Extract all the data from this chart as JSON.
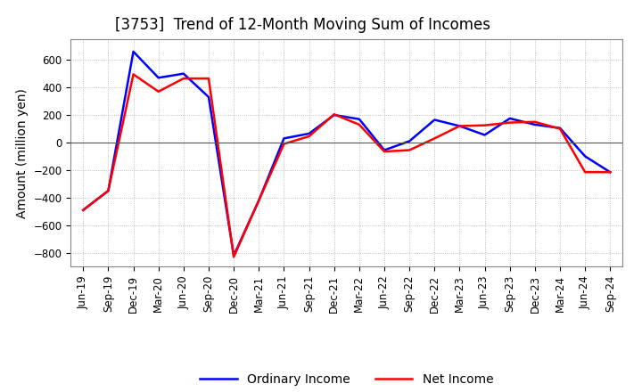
{
  "title": "[3753]  Trend of 12-Month Moving Sum of Incomes",
  "ylabel": "Amount (million yen)",
  "x_labels": [
    "Jun-19",
    "Sep-19",
    "Dec-19",
    "Mar-20",
    "Jun-20",
    "Sep-20",
    "Dec-20",
    "Mar-21",
    "Jun-21",
    "Sep-21",
    "Dec-21",
    "Mar-22",
    "Jun-22",
    "Sep-22",
    "Dec-22",
    "Mar-23",
    "Jun-23",
    "Sep-23",
    "Dec-23",
    "Mar-24",
    "Jun-24",
    "Sep-24"
  ],
  "ordinary_income": [
    -490,
    -350,
    660,
    470,
    500,
    330,
    -820,
    -420,
    30,
    65,
    200,
    170,
    -55,
    10,
    165,
    120,
    55,
    175,
    130,
    105,
    -100,
    -215
  ],
  "net_income": [
    -490,
    -350,
    495,
    370,
    465,
    465,
    -830,
    -420,
    -10,
    45,
    205,
    130,
    -65,
    -55,
    30,
    120,
    125,
    145,
    150,
    100,
    -215,
    -215
  ],
  "ordinary_color": "#0000FF",
  "net_color": "#FF0000",
  "ylim": [
    -900,
    750
  ],
  "yticks": [
    -800,
    -600,
    -400,
    -200,
    0,
    200,
    400,
    600
  ],
  "bg_color": "#FFFFFF",
  "plot_bg_color": "#FFFFFF",
  "grid_color": "#AAAAAA",
  "title_fontsize": 12,
  "label_fontsize": 10,
  "tick_fontsize": 8.5,
  "legend_fontsize": 10,
  "line_width": 1.8
}
